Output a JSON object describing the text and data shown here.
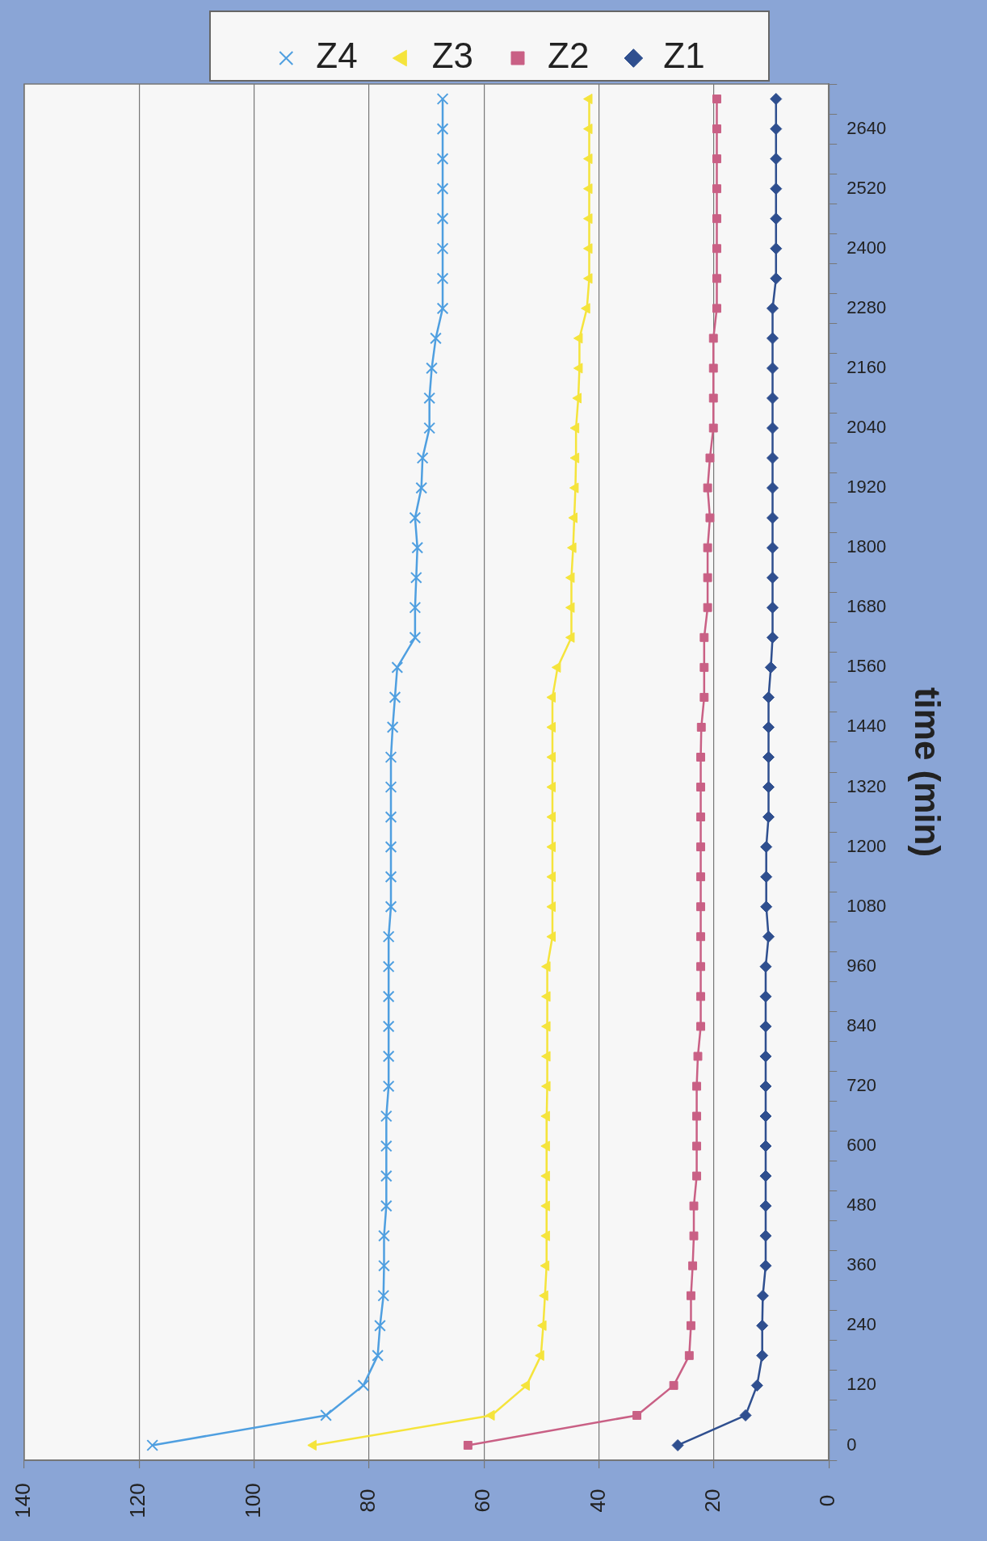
{
  "chart_data": {
    "type": "line",
    "orientation": "horizontal",
    "ylabel": "time (min)",
    "categories": [
      null,
      "2640",
      null,
      "2520",
      null,
      "2400",
      null,
      "2280",
      null,
      "2160",
      null,
      "2040",
      null,
      "1920",
      null,
      "1800",
      null,
      "1680",
      null,
      "1560",
      null,
      "1440",
      null,
      "1320",
      null,
      "1200",
      null,
      "1080",
      null,
      "960",
      null,
      "840",
      null,
      "720",
      null,
      "600",
      null,
      "480",
      null,
      "360",
      null,
      "240",
      null,
      "120",
      null,
      "0"
    ],
    "xlim": [
      140,
      0
    ],
    "xticks": [
      0,
      20,
      40,
      60,
      80,
      100,
      120,
      140
    ],
    "grid": "x",
    "legend": "top",
    "line_style": "solid",
    "series": [
      {
        "name": "Z4",
        "color": "#4f9fe0",
        "marker": "cross",
        "values": [
          67.2,
          67.2,
          67.2,
          67.2,
          67.2,
          67.2,
          67.2,
          67.2,
          68.4,
          69.1,
          69.5,
          69.5,
          70.7,
          70.9,
          72,
          71.6,
          71.8,
          72,
          72,
          75.1,
          75.5,
          75.9,
          76.2,
          76.2,
          76.2,
          76.2,
          76.2,
          76.2,
          76.6,
          76.6,
          76.6,
          76.6,
          76.6,
          76.6,
          77,
          77,
          77,
          77,
          77.4,
          77.4,
          77.5,
          78.1,
          78.5,
          81,
          87.5,
          117.7
        ]
      },
      {
        "name": "Z3",
        "color": "#f5e43c",
        "marker": "triangle",
        "values": [
          41.7,
          41.7,
          41.7,
          41.7,
          41.7,
          41.7,
          41.7,
          42.1,
          43.4,
          43.4,
          43.6,
          44,
          44,
          44.1,
          44.3,
          44.5,
          44.8,
          44.8,
          44.8,
          47.2,
          48.1,
          48.1,
          48.1,
          48.1,
          48.1,
          48.1,
          48.1,
          48.1,
          48.1,
          49,
          49,
          49,
          49,
          49,
          49.1,
          49.1,
          49.1,
          49.1,
          49.1,
          49.2,
          49.4,
          49.7,
          50.1,
          52.6,
          58.7,
          89.7
        ]
      },
      {
        "name": "Z2",
        "color": "#c96085",
        "marker": "square",
        "values": [
          19.5,
          19.5,
          19.5,
          19.5,
          19.5,
          19.5,
          19.5,
          19.5,
          20.1,
          20.1,
          20.1,
          20.1,
          20.7,
          21.1,
          20.7,
          21.1,
          21.1,
          21.1,
          21.7,
          21.7,
          21.7,
          22.2,
          22.3,
          22.3,
          22.3,
          22.3,
          22.3,
          22.3,
          22.3,
          22.3,
          22.3,
          22.3,
          22.8,
          23,
          23,
          23,
          23,
          23.5,
          23.5,
          23.7,
          24,
          24,
          24.3,
          27,
          33.4,
          62.8
        ]
      },
      {
        "name": "Z1",
        "color": "#2f4f8f",
        "marker": "diamond",
        "values": [
          9.2,
          9.2,
          9.2,
          9.2,
          9.2,
          9.2,
          9.2,
          9.8,
          9.8,
          9.8,
          9.8,
          9.8,
          9.8,
          9.8,
          9.8,
          9.8,
          9.8,
          9.8,
          9.8,
          10.1,
          10.5,
          10.5,
          10.5,
          10.5,
          10.5,
          10.9,
          10.9,
          10.9,
          10.5,
          11,
          11,
          11,
          11,
          11,
          11,
          11,
          11,
          11,
          11,
          11,
          11.5,
          11.6,
          11.6,
          12.5,
          14.5,
          26.3
        ]
      }
    ]
  }
}
